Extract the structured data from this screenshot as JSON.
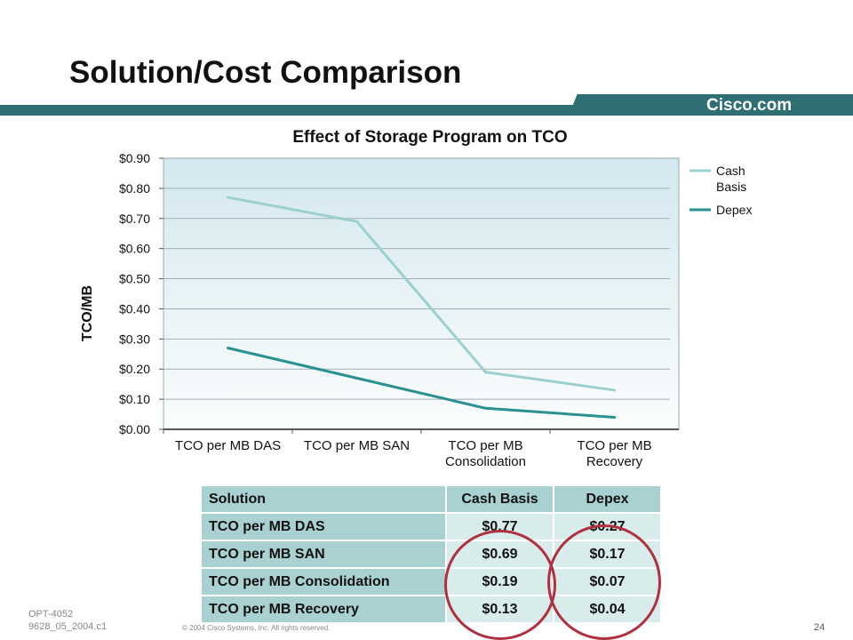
{
  "slide": {
    "title": "Solution/Cost Comparison",
    "brand": "Cisco.com",
    "doc_id_line1": "OPT-4052",
    "doc_id_line2": "9628_05_2004.c1",
    "copyright": "© 2004 Cisco Systems, Inc. All rights reserved.",
    "page_number": "24"
  },
  "colors": {
    "banner": "#2f6f73",
    "cash_basis": "#9ccfd0",
    "depex": "#2a9090",
    "circle": "#b03040"
  },
  "chart_data": {
    "type": "line",
    "title": "Effect of Storage Program on TCO",
    "ylabel": "TCO/MB",
    "xlabel": "",
    "categories": [
      [
        "TCO per MB DAS"
      ],
      [
        "TCO per MB SAN"
      ],
      [
        "TCO per MB",
        "Consolidation"
      ],
      [
        "TCO per MB",
        "Recovery"
      ]
    ],
    "series": [
      {
        "name": "Cash Basis",
        "legend_lines": [
          "Cash",
          "Basis"
        ],
        "values": [
          0.77,
          0.69,
          0.19,
          0.13
        ],
        "color": "#9ccfd0"
      },
      {
        "name": "Depex",
        "legend_lines": [
          "Depex"
        ],
        "values": [
          0.27,
          0.17,
          0.07,
          0.04
        ],
        "color": "#2a9090"
      }
    ],
    "ylim": [
      0,
      0.9
    ],
    "yticks": [
      "$0.00",
      "$0.10",
      "$0.20",
      "$0.30",
      "$0.40",
      "$0.50",
      "$0.60",
      "$0.70",
      "$0.80",
      "$0.90"
    ],
    "grid": true,
    "legend_position": "right"
  },
  "table": {
    "headers": [
      "Solution",
      "Cash Basis",
      "Depex"
    ],
    "rows": [
      [
        "TCO per MB DAS",
        "$0.77",
        "$0.27"
      ],
      [
        "TCO per MB SAN",
        "$0.69",
        "$0.17"
      ],
      [
        "TCO per MB Consolidation",
        "$0.19",
        "$0.07"
      ],
      [
        "TCO per MB Recovery",
        "$0.13",
        "$0.04"
      ]
    ]
  }
}
